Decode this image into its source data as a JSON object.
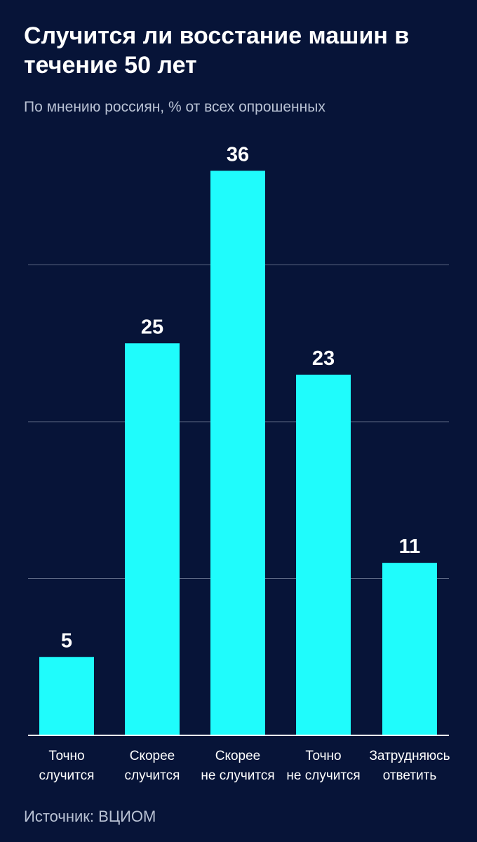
{
  "title": "Случится ли восстание машин в течение 50 лет",
  "subtitle": "По мнению россиян, % от всех опрошенных",
  "source": "Источник: ВЦИОМ",
  "colors": {
    "background": "#071438",
    "bar": "#1ffcfc",
    "gridline": "#5c6783",
    "baseline": "#ffffff",
    "text": "#ffffff"
  },
  "chart_data": {
    "type": "bar",
    "categories": [
      [
        "Точно",
        "случится"
      ],
      [
        "Скорее",
        "случится"
      ],
      [
        "Скорее",
        "не случится"
      ],
      [
        "Точно",
        "не случится"
      ],
      [
        "Затрудняюсь",
        "ответить"
      ]
    ],
    "values": [
      5,
      25,
      36,
      23,
      11
    ],
    "ylim": [
      0,
      40
    ],
    "gridlines": [
      10,
      20,
      30
    ],
    "grid": true,
    "data_labels": true,
    "title": "Случится ли восстание машин в течение 50 лет",
    "xlabel": "",
    "ylabel": ""
  }
}
